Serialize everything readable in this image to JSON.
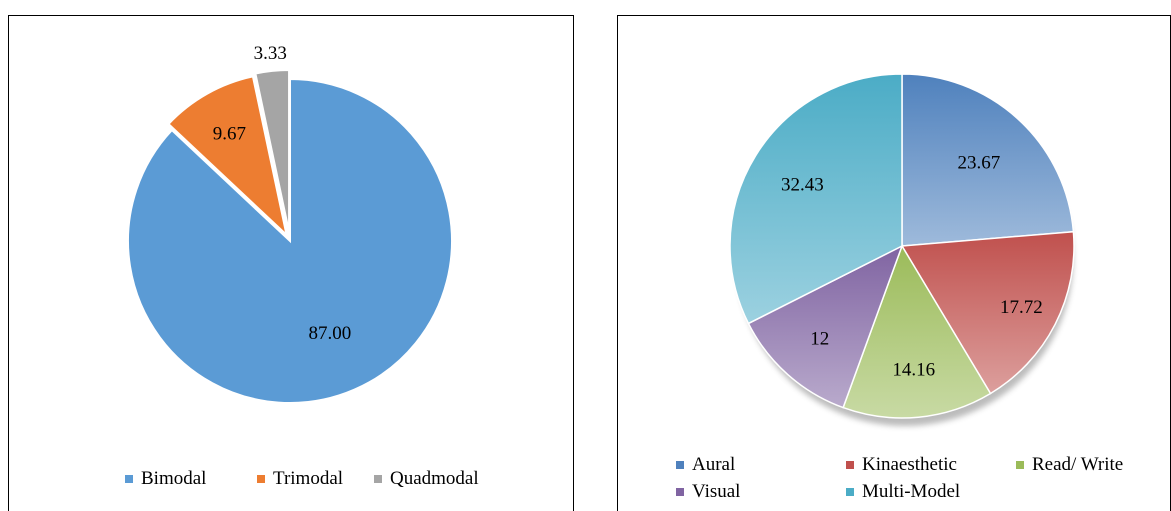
{
  "charts": [
    {
      "chart_data": {
        "type": "pie",
        "categories": [
          "Bimodal",
          "Trimodal",
          "Quadmodal"
        ],
        "values": [
          87.0,
          9.67,
          3.33
        ],
        "data_labels": [
          "87.00",
          "9.67",
          "3.33"
        ],
        "colors": [
          "#5b9bd5",
          "#ed7d31",
          "#a5a5a5"
        ],
        "exploded": true,
        "legend_position": "bottom"
      }
    },
    {
      "chart_data": {
        "type": "pie",
        "style": "3d-gradient",
        "categories": [
          "Aural",
          "Kinaesthetic",
          "Read/ Write",
          "Visual",
          "Multi-Model"
        ],
        "values": [
          23.67,
          17.72,
          14.16,
          12,
          32.43
        ],
        "data_labels": [
          "23.67",
          "17.72",
          "14.16",
          "12",
          "32.43"
        ],
        "colors": [
          "#4f81bd",
          "#c0504d",
          "#9bbb59",
          "#8064a2",
          "#4bacc6"
        ],
        "legend_position": "bottom"
      }
    }
  ]
}
